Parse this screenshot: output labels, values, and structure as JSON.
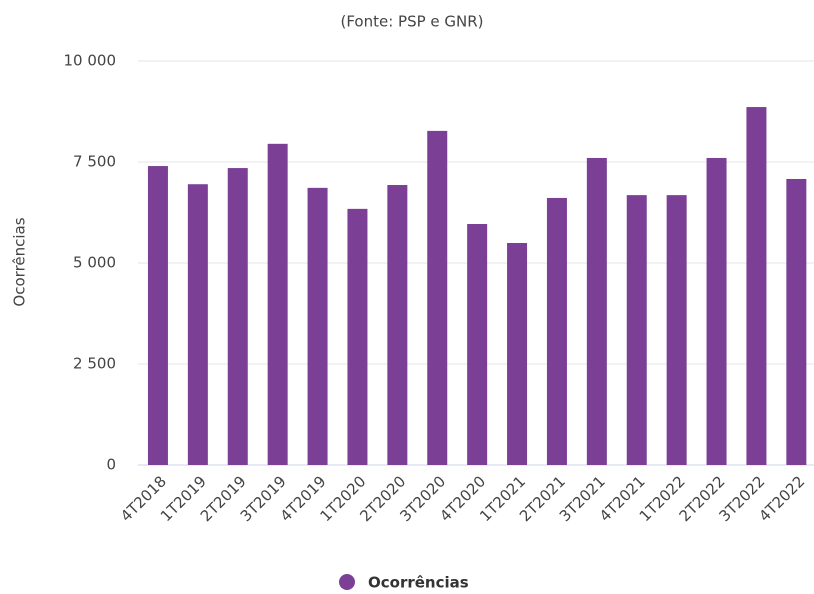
{
  "chart_data": {
    "type": "bar",
    "subtitle": "(Fonte: PSP e GNR)",
    "y_label": "Ocorrências",
    "categories": [
      "4T2018",
      "1T2019",
      "2T2019",
      "3T2019",
      "4T2019",
      "1T2020",
      "2T2020",
      "3T2020",
      "4T2020",
      "1T2021",
      "2T2021",
      "3T2021",
      "4T2021",
      "1T2022",
      "2T2022",
      "3T2022",
      "4T2022"
    ],
    "series": [
      {
        "name": "Ocorrências",
        "color": "#7b3f96",
        "values": [
          7400,
          6950,
          7350,
          7950,
          6860,
          6340,
          6930,
          8270,
          5965,
          5495,
          6610,
          7600,
          6680,
          6680,
          7600,
          8860,
          7080
        ]
      }
    ],
    "ylim": [
      0,
      10000
    ],
    "yticks": [
      0,
      {
        "value": 2500,
        "label": "2 500"
      },
      {
        "value": 5000,
        "label": "5 000"
      },
      {
        "value": 7500,
        "label": "7 500"
      },
      {
        "value": 10000,
        "label": "10 000"
      }
    ],
    "grid": true,
    "legend": "bottom"
  }
}
